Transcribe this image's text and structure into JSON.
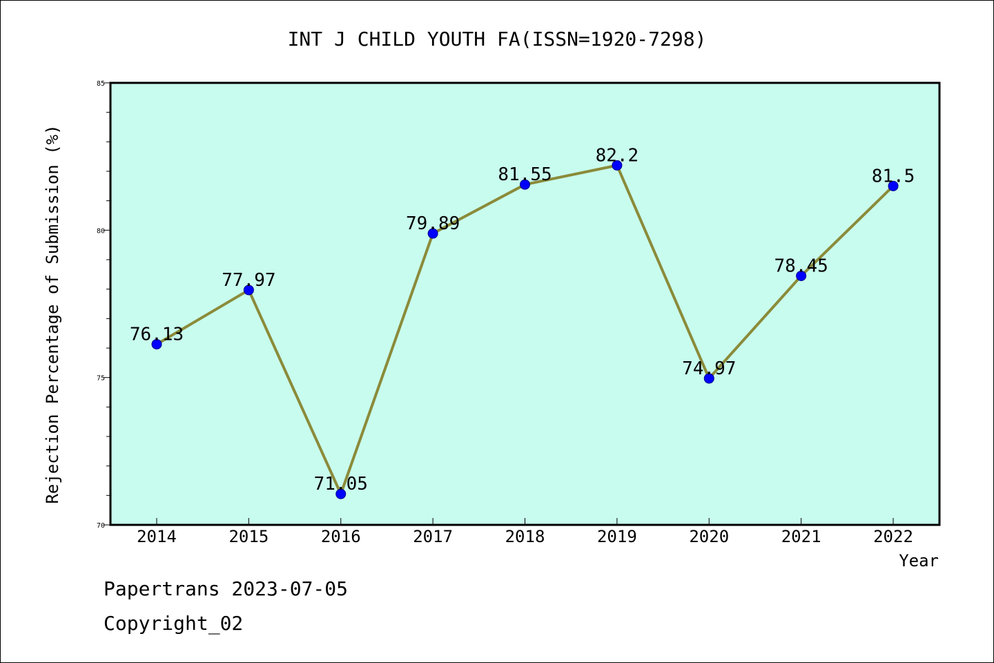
{
  "colors": {
    "plot_background": "#c8fcee",
    "line": "#8b8b3a",
    "marker": "#0000ff"
  },
  "chart_data": {
    "type": "line",
    "title": "INT J CHILD YOUTH FA(ISSN=1920-7298)",
    "xlabel": "Year",
    "ylabel": "Rejection Percentage of Submission (%)",
    "categories": [
      "2014",
      "2015",
      "2016",
      "2017",
      "2018",
      "2019",
      "2020",
      "2021",
      "2022"
    ],
    "series": [
      {
        "values": [
          76.13,
          77.97,
          71.05,
          79.89,
          81.55,
          82.2,
          74.97,
          78.45,
          81.5
        ]
      }
    ],
    "data_labels": [
      "76.13",
      "77.97",
      "71.05",
      "79.89",
      "81.55",
      "82.2",
      "74.97",
      "78.45",
      "81.5"
    ],
    "ylim": [
      70,
      85
    ],
    "yticks": [
      "70",
      "75",
      "80",
      "85"
    ],
    "grid": false,
    "legend": "none"
  },
  "footer": {
    "line1": "Papertrans 2023-07-05",
    "line2": "Copyright_02"
  }
}
